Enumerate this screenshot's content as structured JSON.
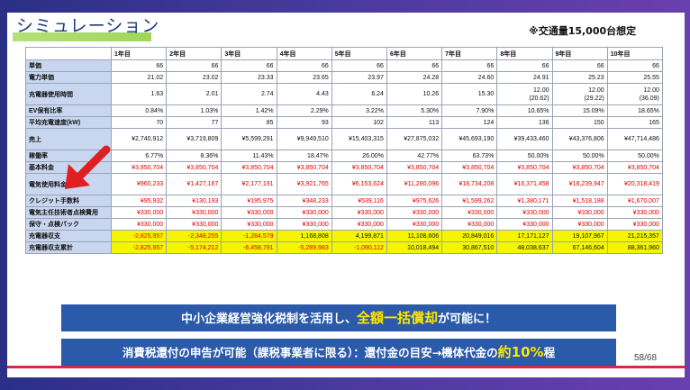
{
  "slide": {
    "title": "シミュレーション",
    "note": "※交通量15,000台想定",
    "page": "58/68"
  },
  "table": {
    "columns": [
      "",
      "1年目",
      "2年目",
      "3年目",
      "4年目",
      "5年目",
      "6年目",
      "7年目",
      "8年目",
      "9年目",
      "10年目"
    ],
    "rows": [
      {
        "label": "単価",
        "style": "normal",
        "values": [
          "66",
          "66",
          "66",
          "66",
          "66",
          "66",
          "66",
          "66",
          "66",
          "66"
        ]
      },
      {
        "label": "電力単価",
        "style": "normal",
        "values": [
          "21.02",
          "23.02",
          "23.33",
          "23.65",
          "23.97",
          "24.28",
          "24.60",
          "24.91",
          "25.23",
          "25.55"
        ]
      },
      {
        "label": "充電器使用時間",
        "style": "normal",
        "values": [
          "1.63",
          "2.01",
          "2.74",
          "4.43",
          "6.24",
          "10.26",
          "15.30",
          "12.00",
          "12.00",
          "12.00"
        ],
        "sub": [
          "",
          "",
          "",
          "",
          "",
          "",
          "",
          "(20.62)",
          "(29.22)",
          "(36.09)"
        ]
      },
      {
        "label": "EV保有比率",
        "style": "normal",
        "values": [
          "0.84%",
          "1.03%",
          "1.42%",
          "2.29%",
          "3.22%",
          "5.30%",
          "7.90%",
          "10.65%",
          "15.09%",
          "18.65%"
        ]
      },
      {
        "label": "平均充電速度(kW)",
        "style": "normal",
        "values": [
          "70",
          "77",
          "85",
          "93",
          "102",
          "113",
          "124",
          "136",
          "150",
          "165"
        ]
      },
      {
        "label": "売上",
        "style": "normal",
        "values": [
          "¥2,740,912",
          "¥3,719,809",
          "¥5,599,291",
          "¥9,949,510",
          "¥15,403,315",
          "¥27,875,032",
          "¥45,693,190",
          "¥39,433,460",
          "¥43,376,806",
          "¥47,714,486"
        ]
      },
      {
        "label": "稼働率",
        "style": "normal",
        "values": [
          "6.77%",
          "8.36%",
          "11.43%",
          "18.47%",
          "26.00%",
          "42.77%",
          "63.73%",
          "50.00%",
          "50.00%",
          "50.00%"
        ]
      },
      {
        "label": "基本料金",
        "style": "red",
        "values": [
          "¥3,850,704",
          "¥3,850,704",
          "¥3,850,704",
          "¥3,850,704",
          "¥3,850,704",
          "¥3,850,704",
          "¥3,850,704",
          "¥3,850,704",
          "¥3,850,704",
          "¥3,850,704"
        ]
      },
      {
        "label": "電気使用料金",
        "style": "red",
        "values": [
          "¥960,233",
          "¥1,427,167",
          "¥2,177,191",
          "¥3,921,765",
          "¥6,153,624",
          "¥11,280,096",
          "¥18,734,208",
          "¥16,371,458",
          "¥18,239,947",
          "¥20,318,419"
        ]
      },
      {
        "label": "クレジット手数料",
        "style": "red",
        "values": [
          "¥95,932",
          "¥130,193",
          "¥195,975",
          "¥348,233",
          "¥539,116",
          "¥975,626",
          "¥1,599,262",
          "¥1,380,171",
          "¥1,518,188",
          "¥1,670,007"
        ]
      },
      {
        "label": "電気主任技術者点検費用",
        "style": "red",
        "values": [
          "¥330,000",
          "¥330,000",
          "¥330,000",
          "¥330,000",
          "¥330,000",
          "¥330,000",
          "¥330,000",
          "¥330,000",
          "¥330,000",
          "¥330,000"
        ]
      },
      {
        "label": "保守・点検パック",
        "style": "red",
        "values": [
          "¥330,000",
          "¥330,000",
          "¥330,000",
          "¥330,000",
          "¥330,000",
          "¥330,000",
          "¥330,000",
          "¥330,000",
          "¥330,000",
          "¥330,000"
        ]
      },
      {
        "label": "充電器収支",
        "style": "yellow",
        "values": [
          "-2,825,957",
          "-2,348,255",
          "-1,284,579",
          "1,168,808",
          "4,199,871",
          "11,108,606",
          "20,849,016",
          "17,171,127",
          "19,107,967",
          "21,215,357"
        ]
      },
      {
        "label": "充電器収支累計",
        "style": "yellow",
        "values": [
          "-2,825,957",
          "-5,174,212",
          "-6,458,791",
          "-5,289,983",
          "-1,090,112",
          "10,018,494",
          "30,867,510",
          "48,038,637",
          "67,146,604",
          "88,361,960"
        ]
      }
    ]
  },
  "banner1": {
    "pre": "中小企業経営強化税制を活用し、",
    "hl": "全額一括償却",
    "post": "が可能に！"
  },
  "banner2": {
    "pre": "消費税還付の申告が可能（課税事業者に限る）：還付金の目安→機体代金の",
    "hl": "約10%",
    "post": "程"
  },
  "colors": {
    "header_bg": "#c8d6f0",
    "negative": "#e00000",
    "highlight_row": "#f5f500",
    "banner": "#2a5aa9",
    "arrow": "#e02020"
  }
}
